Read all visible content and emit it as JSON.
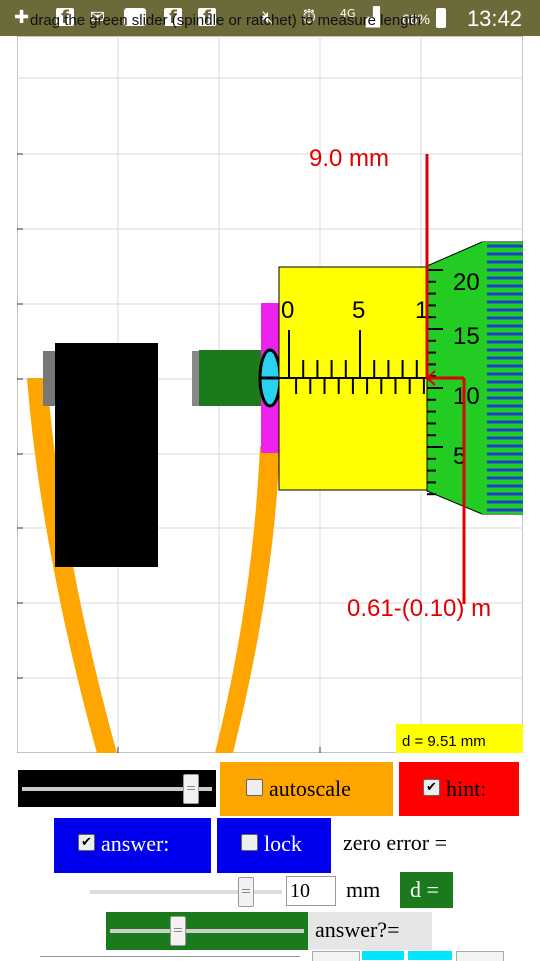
{
  "status_bar": {
    "notification_icons": [
      "add-icon",
      "facebook-icon",
      "mail-icon",
      "app-icon",
      "facebook-icon",
      "facebook-icon"
    ],
    "battery_percent": "66%",
    "network": "4G",
    "time": "13:42"
  },
  "instruction": "drag the green slider (spindle or ratchet) to measure length",
  "simulation": {
    "main_scale_labels": [
      "0",
      "5",
      "1"
    ],
    "thimble_labels": [
      "20",
      "15",
      "10",
      "5"
    ],
    "main_reading_label": "9.0 mm",
    "thimble_reading_label": "0.61-(0.10) m",
    "display_value": "d = 9.51 mm",
    "colors": {
      "frame": "#ffa500",
      "anvil_block": "#000000",
      "spindle": "#1b7a1b",
      "sleeve": "#ffff00",
      "thimble": "#22cc22",
      "ratchet_scale": "#1f3fd0",
      "lock_nut": "#ee22ee",
      "marker": "#e00000"
    }
  },
  "controls": {
    "autoscale": {
      "label": "autoscale",
      "checked": false,
      "color": "#ffa500"
    },
    "hint": {
      "label": "hint:",
      "checked": true,
      "color": "#ff0000"
    },
    "answer": {
      "label": "answer:",
      "checked": true,
      "color": "#0000ee"
    },
    "lock": {
      "label": "lock",
      "checked": false,
      "color": "#0000ee"
    },
    "zero_error_label": "zero error =",
    "zero_error_value": "10",
    "unit_label": "mm",
    "d_button_label": "d =",
    "answer_prompt": "answer?="
  }
}
